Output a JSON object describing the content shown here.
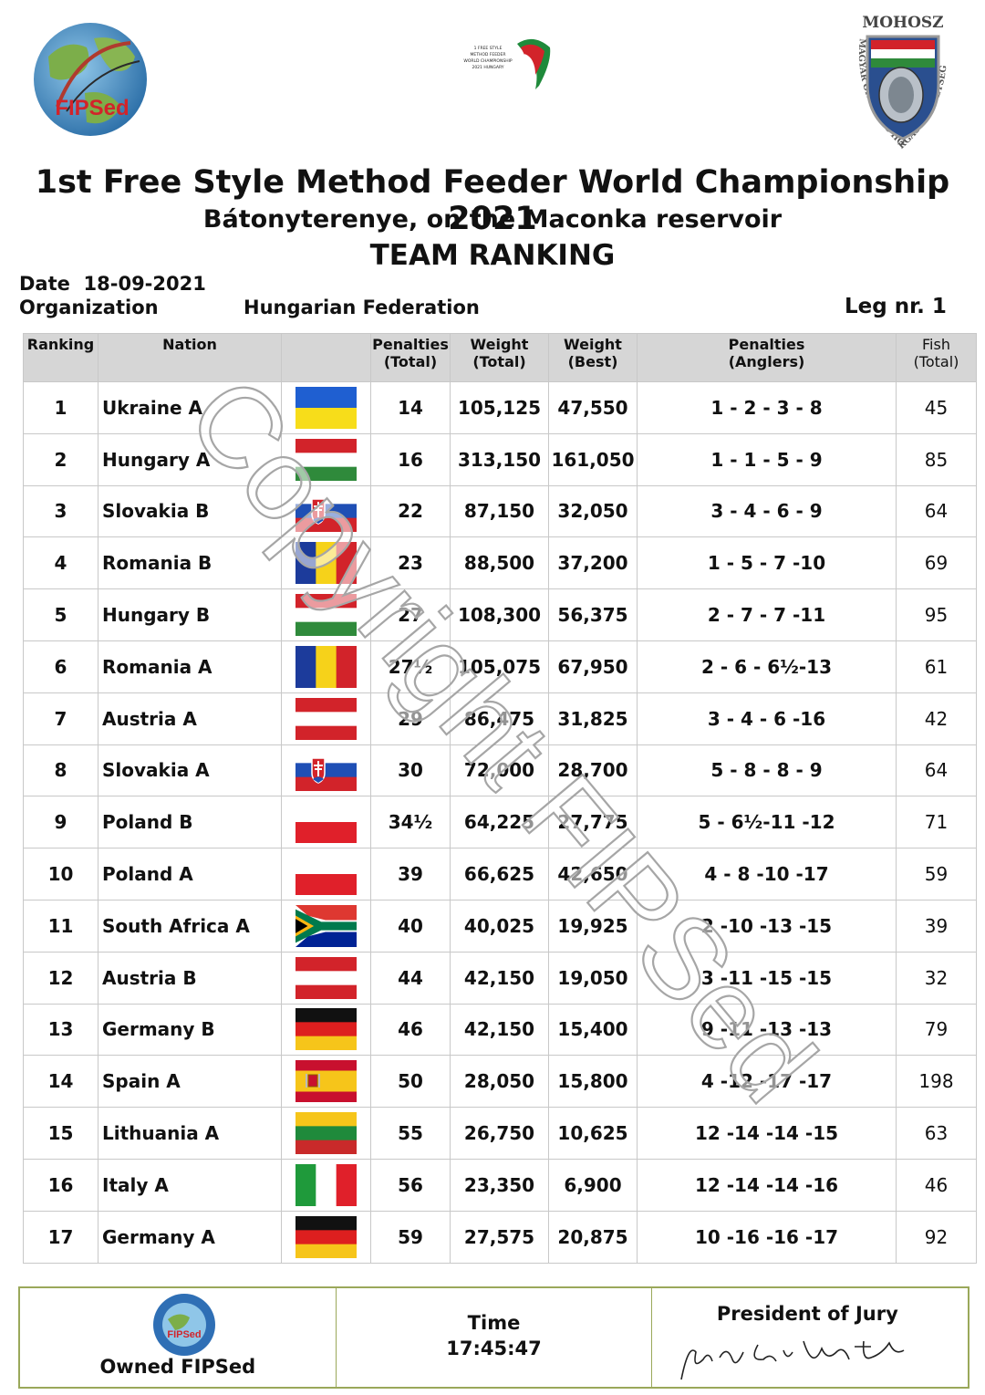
{
  "header": {
    "left_logo_text": "FIPSed",
    "mid_logo_text": "1 FREE STYLE METHOD FEEDER WORLD CHAMPIONSHIP 2021 HUNGARY",
    "right_logo_top": "MOHOSZ",
    "right_logo_ring": "MAGYAR ORSZÁGOS HORGÁSZ SZÖVETSÉG",
    "title": "1st Free Style Method Feeder World Championship 2021",
    "subtitle": "Bátonyterenye, on the Maconka reservoir",
    "ranking_title": "TEAM RANKING"
  },
  "meta": {
    "date_label": "Date",
    "date_value": "18-09-2021",
    "organization_label": "Organization",
    "organization_value": "Hungarian Federation",
    "leg_label": "Leg nr.",
    "leg_value": "1"
  },
  "table": {
    "headers": {
      "ranking": "Ranking",
      "nation": "Nation",
      "flag": "",
      "penalties_total": [
        "Penalties",
        "(Total)"
      ],
      "weight_total": [
        "Weight",
        "(Total)"
      ],
      "weight_best": [
        "Weight",
        "(Best)"
      ],
      "penalties_anglers": [
        "Penalties",
        "(Anglers)"
      ],
      "fish_total": [
        "Fish",
        "(Total)"
      ]
    },
    "rows": [
      {
        "rank": "1",
        "nation": "Ukraine A",
        "flag": "ukraine",
        "pen": "14",
        "wt": "105,125",
        "wb": "47,550",
        "pa": "1 - 2 - 3 - 8",
        "fish": "45"
      },
      {
        "rank": "2",
        "nation": "Hungary A",
        "flag": "hungary",
        "pen": "16",
        "wt": "313,150",
        "wb": "161,050",
        "pa": "1 - 1 - 5 - 9",
        "fish": "85"
      },
      {
        "rank": "3",
        "nation": "Slovakia B",
        "flag": "slovakia",
        "pen": "22",
        "wt": "87,150",
        "wb": "32,050",
        "pa": "3 - 4 - 6 - 9",
        "fish": "64"
      },
      {
        "rank": "4",
        "nation": "Romania B",
        "flag": "romania",
        "pen": "23",
        "wt": "88,500",
        "wb": "37,200",
        "pa": "1 - 5 - 7 -10",
        "fish": "69"
      },
      {
        "rank": "5",
        "nation": "Hungary B",
        "flag": "hungary",
        "pen": "27",
        "wt": "108,300",
        "wb": "56,375",
        "pa": "2 - 7 - 7 -11",
        "fish": "95"
      },
      {
        "rank": "6",
        "nation": "Romania A",
        "flag": "romania",
        "pen": "27½",
        "wt": "105,075",
        "wb": "67,950",
        "pa": "2 - 6 - 6½-13",
        "fish": "61"
      },
      {
        "rank": "7",
        "nation": "Austria A",
        "flag": "austria",
        "pen": "29",
        "wt": "86,475",
        "wb": "31,825",
        "pa": "3 - 4 - 6 -16",
        "fish": "42"
      },
      {
        "rank": "8",
        "nation": "Slovakia A",
        "flag": "slovakia",
        "pen": "30",
        "wt": "72,000",
        "wb": "28,700",
        "pa": "5 - 8 - 8 - 9",
        "fish": "64"
      },
      {
        "rank": "9",
        "nation": "Poland B",
        "flag": "poland",
        "pen": "34½",
        "wt": "64,225",
        "wb": "27,775",
        "pa": "5 - 6½-11 -12",
        "fish": "71"
      },
      {
        "rank": "10",
        "nation": "Poland A",
        "flag": "poland",
        "pen": "39",
        "wt": "66,625",
        "wb": "42,650",
        "pa": "4 - 8 -10 -17",
        "fish": "59"
      },
      {
        "rank": "11",
        "nation": "South Africa A",
        "flag": "southafrica",
        "pen": "40",
        "wt": "40,025",
        "wb": "19,925",
        "pa": "2 -10 -13 -15",
        "fish": "39"
      },
      {
        "rank": "12",
        "nation": "Austria B",
        "flag": "austria",
        "pen": "44",
        "wt": "42,150",
        "wb": "19,050",
        "pa": "3 -11 -15 -15",
        "fish": "32"
      },
      {
        "rank": "13",
        "nation": "Germany B",
        "flag": "germany",
        "pen": "46",
        "wt": "42,150",
        "wb": "15,400",
        "pa": "9 -11 -13 -13",
        "fish": "79"
      },
      {
        "rank": "14",
        "nation": "Spain A",
        "flag": "spain",
        "pen": "50",
        "wt": "28,050",
        "wb": "15,800",
        "pa": "4 -12 -17 -17",
        "fish": "198"
      },
      {
        "rank": "15",
        "nation": "Lithuania A",
        "flag": "lithuania",
        "pen": "55",
        "wt": "26,750",
        "wb": "10,625",
        "pa": "12 -14 -14 -15",
        "fish": "63"
      },
      {
        "rank": "16",
        "nation": "Italy A",
        "flag": "italy",
        "pen": "56",
        "wt": "23,350",
        "wb": "6,900",
        "pa": "12 -14 -14 -16",
        "fish": "46"
      },
      {
        "rank": "17",
        "nation": "Germany A",
        "flag": "germany",
        "pen": "59",
        "wt": "27,575",
        "wb": "20,875",
        "pa": "10 -16 -16 -17",
        "fish": "92"
      }
    ]
  },
  "watermark": "Copyright FIPSed",
  "footer": {
    "owned_label": "Owned FIPSed",
    "stamp_text": "FIPSed",
    "time_label": "Time",
    "time_value": "17:45:47",
    "president_label": "President of Jury",
    "signature": "Ugo Claudio Matteoli"
  },
  "colors": {
    "header_bg": "#d6d6d6",
    "grid": "#c8c8c8",
    "footer_border": "#9aa85a",
    "fipsed_red": "#d2232a"
  }
}
